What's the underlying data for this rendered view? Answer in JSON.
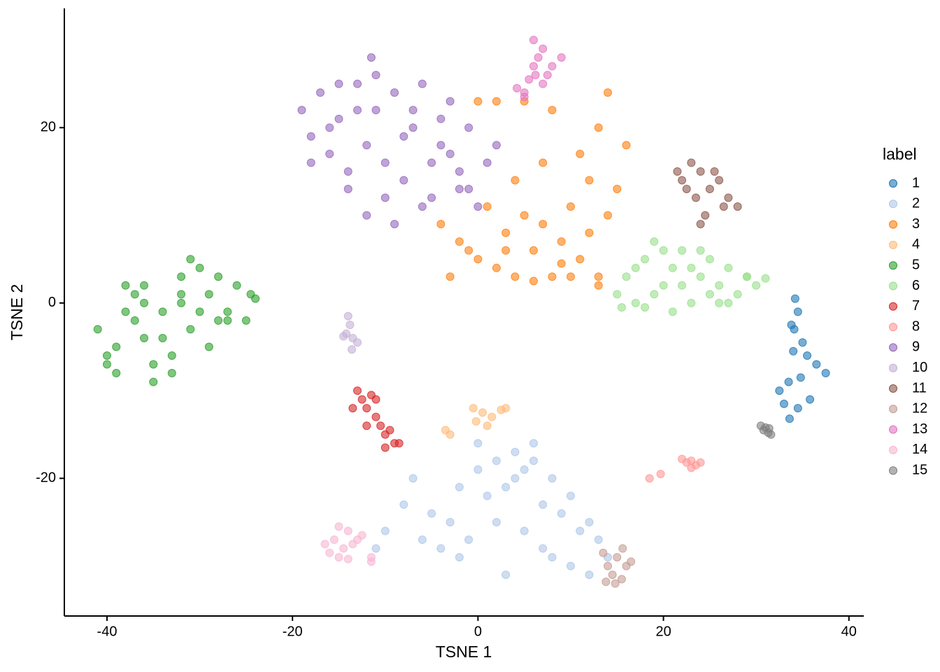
{
  "chart_data": {
    "type": "scatter",
    "x_label": "TSNE 1",
    "y_label": "TSNE 2",
    "legend_title": "label",
    "legend": "right",
    "xlim": [
      -44.6,
      41.6
    ],
    "ylim": [
      -35.7,
      33.6
    ],
    "xticks": [
      -40,
      -20,
      0,
      20,
      40
    ],
    "yticks": [
      -20,
      0,
      20
    ],
    "grid": false,
    "series": [
      {
        "name": "1",
        "color": "#1f77b4",
        "x": [
          34.2,
          34.5,
          33.8,
          35.0,
          34.0,
          35.5,
          36.5,
          37.5,
          34.8,
          33.5,
          32.5,
          33.0,
          34.5,
          35.8,
          33.6,
          34.1
        ],
        "y": [
          0.5,
          -1,
          -2.5,
          -4.5,
          -5.5,
          -6,
          -7,
          -8,
          -8.5,
          -9,
          -10,
          -11.5,
          -12,
          -11,
          -13.2,
          -3
        ]
      },
      {
        "name": "2",
        "color": "#aec7e8",
        "x": [
          -10,
          -8,
          -5,
          -2,
          0,
          2,
          4,
          6,
          8,
          10,
          12,
          13,
          14,
          -11,
          -6,
          -3,
          1,
          3,
          5,
          7,
          9,
          11,
          -4,
          -1,
          2,
          5,
          8,
          10,
          12,
          0,
          4,
          7,
          -7,
          -2,
          6,
          3
        ],
        "y": [
          -26,
          -23,
          -24,
          -21,
          -19,
          -18,
          -17,
          -18,
          -20,
          -22,
          -25,
          -27,
          -29,
          -28,
          -27,
          -25,
          -22,
          -21,
          -19,
          -23,
          -24,
          -26,
          -28,
          -27,
          -25,
          -26,
          -29,
          -30,
          -31,
          -16,
          -20,
          -28,
          -20,
          -29,
          -16,
          -31
        ]
      },
      {
        "name": "3",
        "color": "#ff7f0e",
        "x": [
          -4,
          -2,
          0,
          2,
          4,
          6,
          8,
          3,
          5,
          7,
          9,
          11,
          13,
          1,
          -1,
          3,
          6,
          10,
          12,
          14,
          15,
          16,
          13,
          11,
          8,
          5,
          2,
          0,
          9,
          12,
          14,
          -3,
          4,
          7,
          10,
          13
        ],
        "y": [
          9,
          7,
          5,
          4,
          3,
          2.5,
          3,
          8,
          10,
          9,
          7,
          5,
          3,
          11,
          6,
          6,
          6,
          3,
          8,
          10,
          13,
          18,
          20,
          17,
          22,
          23,
          23,
          23,
          4.5,
          14,
          24,
          3,
          14,
          16,
          11,
          2
        ]
      },
      {
        "name": "4",
        "color": "#ffbb78",
        "x": [
          -0.5,
          0.5,
          1.5,
          2.5,
          -0.2,
          -3.5,
          -3,
          1,
          3
        ],
        "y": [
          -12,
          -12.5,
          -13,
          -12.2,
          -13.5,
          -14.5,
          -15,
          -14,
          -12
        ]
      },
      {
        "name": "5",
        "color": "#2ca02c",
        "x": [
          -41,
          -40,
          -39,
          -38,
          -37,
          -36,
          -35,
          -34,
          -33,
          -32,
          -31,
          -30,
          -29,
          -28,
          -27,
          -26,
          -25,
          -24,
          -39,
          -37,
          -35,
          -33,
          -31,
          -29,
          -38,
          -36,
          -34,
          -32,
          -30,
          -28,
          -40,
          -36,
          -32,
          -27,
          -24.5
        ],
        "y": [
          -3,
          -6,
          -8,
          -1,
          1,
          2,
          -7,
          -4,
          -8,
          3,
          5,
          4,
          1,
          -2,
          -1,
          2,
          -2,
          0.5,
          -5,
          -2,
          -9,
          -6,
          -3,
          -5,
          2,
          0,
          -1,
          1,
          -1,
          3,
          -7,
          -4,
          0,
          -2,
          1
        ]
      },
      {
        "name": "6",
        "color": "#98df8a",
        "x": [
          15,
          16,
          17,
          18,
          19,
          20,
          21,
          22,
          23,
          24,
          25,
          26,
          27,
          28,
          29,
          30,
          31,
          18,
          20,
          22,
          24,
          26,
          17,
          19,
          21,
          23,
          25,
          27,
          29,
          15.5
        ],
        "y": [
          1,
          3,
          0,
          5,
          7,
          6,
          4,
          2,
          0,
          3,
          5,
          2,
          4,
          1,
          3,
          2,
          2.8,
          -0.5,
          2,
          6,
          6,
          0,
          4,
          1,
          -1,
          4,
          1,
          0,
          3,
          -0.5
        ]
      },
      {
        "name": "7",
        "color": "#d62728",
        "x": [
          -13,
          -12.5,
          -12,
          -11.5,
          -11,
          -10.5,
          -10,
          -9.5,
          -9,
          -13.5,
          -11,
          -12,
          -8.5,
          -10
        ],
        "y": [
          -10,
          -11,
          -12,
          -10.5,
          -13,
          -14,
          -15,
          -14.5,
          -16,
          -12,
          -11,
          -14,
          -16,
          -16.5
        ]
      },
      {
        "name": "8",
        "color": "#ff9896",
        "x": [
          22,
          22.5,
          23,
          23.5,
          24,
          23,
          18.5,
          19.7
        ],
        "y": [
          -17.8,
          -18.2,
          -18,
          -18.5,
          -18.2,
          -18.8,
          -20,
          -19.5
        ]
      },
      {
        "name": "9",
        "color": "#9467bd",
        "x": [
          -19,
          -18,
          -17,
          -16,
          -15,
          -14,
          -13,
          -12,
          -11,
          -10,
          -9,
          -8,
          -7,
          -6,
          -5,
          -4,
          -3,
          -2,
          -1,
          0,
          1,
          2,
          -18,
          -16,
          -14,
          -12,
          -10,
          -8,
          -6,
          -4,
          -2,
          -15,
          -11,
          -7,
          -3,
          -13,
          -9,
          -5,
          -1,
          -11.5
        ],
        "y": [
          22,
          19,
          24,
          17,
          21,
          13,
          25,
          18,
          22,
          16,
          24,
          14,
          20,
          25,
          12,
          18,
          23,
          15,
          20,
          11,
          16,
          18,
          16,
          20,
          15,
          10,
          12,
          19,
          11,
          21,
          13,
          25,
          26,
          22,
          17,
          22,
          9,
          16,
          13,
          28
        ]
      },
      {
        "name": "10",
        "color": "#c5b0d5",
        "x": [
          -14,
          -13.8,
          -14.2,
          -13.5,
          -13,
          -14.5,
          -13.6
        ],
        "y": [
          -1.5,
          -2.5,
          -3.5,
          -4,
          -4.5,
          -3.8,
          -5.3
        ]
      },
      {
        "name": "11",
        "color": "#8c564b",
        "x": [
          21.5,
          22,
          23,
          24,
          25,
          26,
          27,
          28,
          24.5,
          23.5,
          22.5,
          26.5,
          25.5,
          24
        ],
        "y": [
          15,
          14,
          16,
          15,
          13,
          14,
          12,
          11,
          10,
          12,
          13,
          11,
          15,
          9
        ]
      },
      {
        "name": "12",
        "color": "#c49c94",
        "x": [
          13.5,
          14,
          14.5,
          15,
          15.5,
          16,
          16.5,
          14.8,
          15.6,
          13.8
        ],
        "y": [
          -28.5,
          -30,
          -31,
          -29,
          -31.5,
          -30,
          -29.5,
          -32,
          -28,
          -31.8
        ]
      },
      {
        "name": "13",
        "color": "#e377c2",
        "x": [
          5,
          5.5,
          6,
          6.5,
          7,
          7.5,
          8,
          6,
          7,
          5,
          9,
          6.2,
          4.2
        ],
        "y": [
          24,
          25.5,
          27,
          28,
          29,
          26,
          27,
          30,
          25,
          23.5,
          28,
          26,
          24.5
        ]
      },
      {
        "name": "14",
        "color": "#f7b6d2",
        "x": [
          -16.5,
          -16,
          -15.5,
          -15,
          -14.5,
          -14,
          -13.5,
          -13,
          -15,
          -14,
          -12.5,
          -11.5,
          -11.5
        ],
        "y": [
          -27.5,
          -28.5,
          -27,
          -29,
          -28,
          -26,
          -27.5,
          -27,
          -25.5,
          -29.2,
          -26.5,
          -29,
          -29.5
        ]
      },
      {
        "name": "15",
        "color": "#7f7f7f",
        "x": [
          30.5,
          31,
          31.3,
          31.6,
          30.8,
          31.4
        ],
        "y": [
          -14,
          -14.2,
          -14.8,
          -15,
          -14.5,
          -14.3
        ]
      }
    ]
  }
}
